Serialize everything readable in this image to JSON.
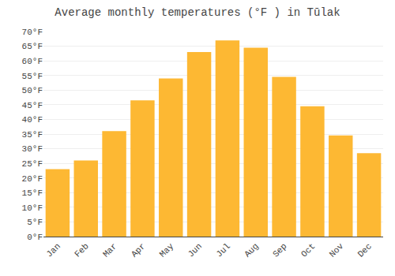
{
  "chart_data": {
    "type": "bar",
    "title": "Average monthly temperatures (°F ) in Tūlak",
    "categories": [
      "Jan",
      "Feb",
      "Mar",
      "Apr",
      "May",
      "Jun",
      "Jul",
      "Aug",
      "Sep",
      "Oct",
      "Nov",
      "Dec"
    ],
    "values": [
      23,
      26,
      36,
      46.5,
      54,
      63,
      67,
      64.5,
      54.5,
      44.5,
      34.5,
      28.5
    ],
    "color": "#FDB833",
    "ylim": [
      0,
      70
    ],
    "yticks": [
      {
        "value": 0,
        "label": "0°F"
      },
      {
        "value": 5,
        "label": "5°F"
      },
      {
        "value": 10,
        "label": "10°F"
      },
      {
        "value": 15,
        "label": "15°F"
      },
      {
        "value": 20,
        "label": "20°F"
      },
      {
        "value": 25,
        "label": "25°F"
      },
      {
        "value": 30,
        "label": "30°F"
      },
      {
        "value": 35,
        "label": "35°F"
      },
      {
        "value": 40,
        "label": "40°F"
      },
      {
        "value": 45,
        "label": "45°F"
      },
      {
        "value": 50,
        "label": "50°F"
      },
      {
        "value": 55,
        "label": "55°F"
      },
      {
        "value": 60,
        "label": "60°F"
      },
      {
        "value": 65,
        "label": "65°F"
      },
      {
        "value": 70,
        "label": "70°F"
      }
    ],
    "grid": true
  }
}
